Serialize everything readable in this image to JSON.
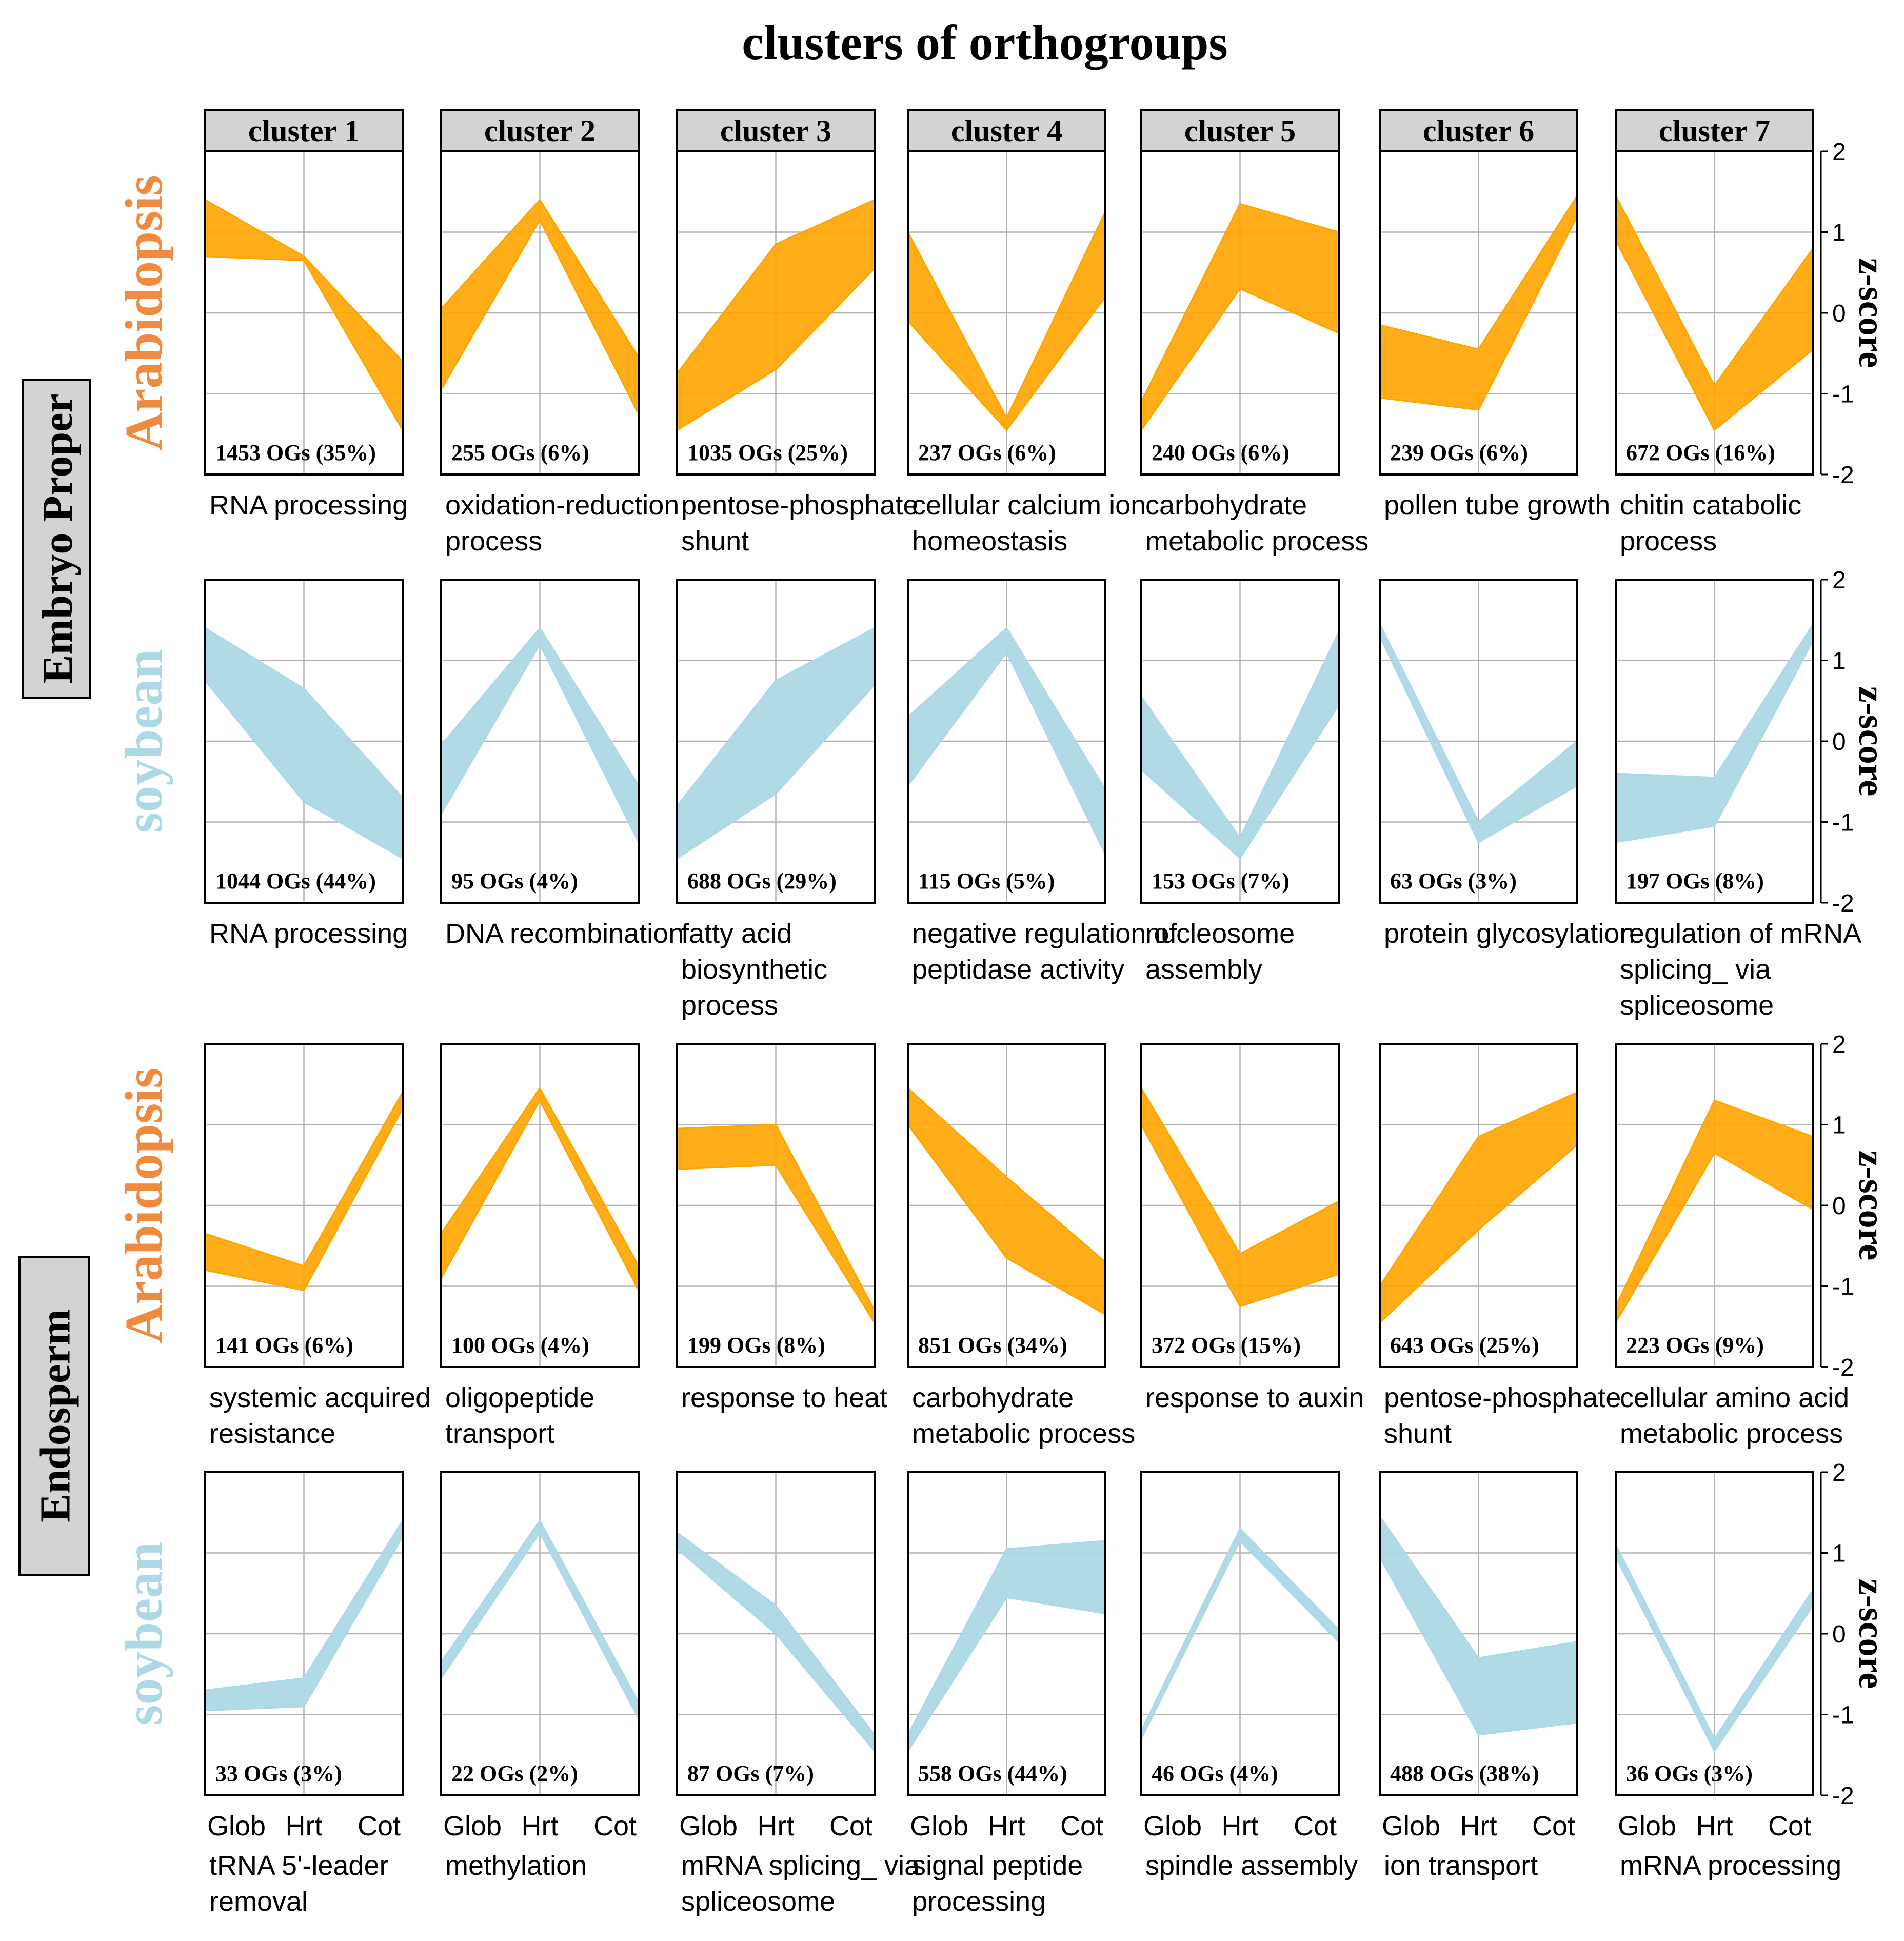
{
  "colors": {
    "arabidopsis": "#FFA500",
    "soybean": "#ADD8E6",
    "arabidopsis_label": "#F08A3E",
    "soybean_label": "#ADD8E6",
    "strip_fill": "#d3d3d3",
    "grid": "#b3b3b3"
  },
  "figure_title": "clusters of orthogroups",
  "tissues": [
    "Embryo Proper",
    "Endosperm"
  ],
  "cluster_labels": [
    "cluster 1",
    "cluster 2",
    "cluster 3",
    "cluster 4",
    "cluster 5",
    "cluster 6",
    "cluster 7"
  ],
  "x_ticks": [
    "Glob",
    "Hrt",
    "Cot"
  ],
  "y_axis_label": "z-score",
  "y_ticks": [
    "2",
    "1",
    "0",
    "-1",
    "-2"
  ],
  "rows": [
    {
      "tissue": "Embryo Proper",
      "species": "Arabidopsis",
      "panels": [
        {
          "count": "1453 OGs (35%)",
          "go": [
            "RNA processing"
          ]
        },
        {
          "count": "255 OGs (6%)",
          "go": [
            "oxidation-reduction",
            "process"
          ]
        },
        {
          "count": "1035 OGs (25%)",
          "go": [
            "pentose-phosphate",
            "shunt"
          ]
        },
        {
          "count": "237 OGs (6%)",
          "go": [
            "cellular calcium ion",
            "homeostasis"
          ]
        },
        {
          "count": "240 OGs (6%)",
          "go": [
            "carbohydrate",
            "metabolic process"
          ]
        },
        {
          "count": "239 OGs (6%)",
          "go": [
            "pollen tube growth"
          ]
        },
        {
          "count": "672 OGs (16%)",
          "go": [
            "chitin catabolic",
            "process"
          ]
        }
      ]
    },
    {
      "tissue": "Embryo Proper",
      "species": "soybean",
      "panels": [
        {
          "count": "1044 OGs (44%)",
          "go": [
            "RNA processing"
          ]
        },
        {
          "count": "95 OGs (4%)",
          "go": [
            "DNA recombination"
          ]
        },
        {
          "count": "688 OGs (29%)",
          "go": [
            "fatty acid",
            "biosynthetic",
            "process"
          ]
        },
        {
          "count": "115 OGs (5%)",
          "go": [
            "negative regulation of",
            "peptidase activity"
          ]
        },
        {
          "count": "153 OGs (7%)",
          "go": [
            "nucleosome",
            "assembly"
          ]
        },
        {
          "count": "63 OGs (3%)",
          "go": [
            "protein glycosylation"
          ]
        },
        {
          "count": "197 OGs (8%)",
          "go": [
            "regulation of mRNA",
            "splicing_ via",
            "spliceosome"
          ]
        }
      ]
    },
    {
      "tissue": "Endosperm",
      "species": "Arabidopsis",
      "panels": [
        {
          "count": "141 OGs (6%)",
          "go": [
            "systemic acquired",
            "resistance"
          ]
        },
        {
          "count": "100 OGs (4%)",
          "go": [
            "oligopeptide",
            "transport"
          ]
        },
        {
          "count": "199 OGs (8%)",
          "go": [
            "response to heat"
          ]
        },
        {
          "count": "851 OGs (34%)",
          "go": [
            "carbohydrate",
            "metabolic process"
          ]
        },
        {
          "count": "372 OGs (15%)",
          "go": [
            "response to auxin"
          ]
        },
        {
          "count": "643 OGs (25%)",
          "go": [
            "pentose-phosphate",
            "shunt"
          ]
        },
        {
          "count": "223 OGs (9%)",
          "go": [
            "cellular amino acid",
            "metabolic process"
          ]
        }
      ]
    },
    {
      "tissue": "Endosperm",
      "species": "soybean",
      "panels": [
        {
          "count": "33 OGs (3%)",
          "go": [
            "tRNA 5'-leader",
            "removal"
          ]
        },
        {
          "count": "22 OGs (2%)",
          "go": [
            "methylation"
          ]
        },
        {
          "count": "87 OGs (7%)",
          "go": [
            "mRNA splicing_ via",
            "spliceosome"
          ]
        },
        {
          "count": "558 OGs (44%)",
          "go": [
            "signal peptide",
            "processing"
          ]
        },
        {
          "count": "46 OGs (4%)",
          "go": [
            "spindle assembly"
          ]
        },
        {
          "count": "488 OGs (38%)",
          "go": [
            "ion transport"
          ]
        },
        {
          "count": "36 OGs (3%)",
          "go": [
            "mRNA processing"
          ]
        }
      ]
    }
  ],
  "chart_data": {
    "type": "line",
    "title": "clusters of orthogroups",
    "x": [
      "Glob",
      "Hrt",
      "Cot"
    ],
    "ylabel": "z-score",
    "ylim": [
      -2,
      2
    ],
    "grid": true,
    "note": "Each panel draws many per-orthogroup lines; band = [min,max] z-score envelope at Glob, Hrt, Cot.",
    "panels": [
      {
        "row": "Embryo Proper / Arabidopsis",
        "cluster": 1,
        "low": [
          0.7,
          0.65,
          -1.45
        ],
        "high": [
          1.4,
          0.7,
          -0.6
        ]
      },
      {
        "row": "Embryo Proper / Arabidopsis",
        "cluster": 2,
        "low": [
          -0.95,
          1.15,
          -1.25
        ],
        "high": [
          0.05,
          1.4,
          -0.55
        ]
      },
      {
        "row": "Embryo Proper / Arabidopsis",
        "cluster": 3,
        "low": [
          -1.45,
          -0.7,
          0.55
        ],
        "high": [
          -0.75,
          0.85,
          1.4
        ]
      },
      {
        "row": "Embryo Proper / Arabidopsis",
        "cluster": 4,
        "low": [
          -0.1,
          -1.45,
          0.2
        ],
        "high": [
          1.0,
          -1.3,
          1.25
        ]
      },
      {
        "row": "Embryo Proper / Arabidopsis",
        "cluster": 5,
        "low": [
          -1.45,
          0.3,
          -0.25
        ],
        "high": [
          -1.1,
          1.35,
          1.0
        ]
      },
      {
        "row": "Embryo Proper / Arabidopsis",
        "cluster": 6,
        "low": [
          -1.05,
          -1.2,
          1.2
        ],
        "high": [
          -0.15,
          -0.45,
          1.45
        ]
      },
      {
        "row": "Embryo Proper / Arabidopsis",
        "cluster": 7,
        "low": [
          0.9,
          -1.45,
          -0.45
        ],
        "high": [
          1.45,
          -0.9,
          0.8
        ]
      },
      {
        "row": "Embryo Proper / soybean",
        "cluster": 1,
        "low": [
          0.75,
          -0.75,
          -1.45
        ],
        "high": [
          1.4,
          0.65,
          -0.7
        ]
      },
      {
        "row": "Embryo Proper / soybean",
        "cluster": 2,
        "low": [
          -0.9,
          1.2,
          -1.25
        ],
        "high": [
          -0.05,
          1.4,
          -0.55
        ]
      },
      {
        "row": "Embryo Proper / soybean",
        "cluster": 3,
        "low": [
          -1.45,
          -0.65,
          0.7
        ],
        "high": [
          -0.8,
          0.75,
          1.4
        ]
      },
      {
        "row": "Embryo Proper / soybean",
        "cluster": 4,
        "low": [
          -0.55,
          1.1,
          -1.4
        ],
        "high": [
          0.3,
          1.4,
          -0.6
        ]
      },
      {
        "row": "Embryo Proper / soybean",
        "cluster": 5,
        "low": [
          -0.35,
          -1.45,
          0.45
        ],
        "high": [
          0.55,
          -1.2,
          1.35
        ]
      },
      {
        "row": "Embryo Proper / soybean",
        "cluster": 6,
        "low": [
          1.3,
          -1.25,
          -0.55
        ],
        "high": [
          1.45,
          -1.0,
          0.0
        ]
      },
      {
        "row": "Embryo Proper / soybean",
        "cluster": 7,
        "low": [
          -1.25,
          -1.05,
          1.25
        ],
        "high": [
          -0.4,
          -0.45,
          1.45
        ]
      },
      {
        "row": "Endosperm / Arabidopsis",
        "cluster": 1,
        "low": [
          -0.8,
          -1.05,
          1.2
        ],
        "high": [
          -0.35,
          -0.75,
          1.4
        ]
      },
      {
        "row": "Endosperm / Arabidopsis",
        "cluster": 2,
        "low": [
          -0.9,
          1.3,
          -1.05
        ],
        "high": [
          -0.35,
          1.45,
          -0.75
        ]
      },
      {
        "row": "Endosperm / Arabidopsis",
        "cluster": 3,
        "low": [
          0.45,
          0.5,
          -1.45
        ],
        "high": [
          0.95,
          1.0,
          -1.3
        ]
      },
      {
        "row": "Endosperm / Arabidopsis",
        "cluster": 4,
        "low": [
          1.0,
          -0.65,
          -1.35
        ],
        "high": [
          1.45,
          0.35,
          -0.7
        ]
      },
      {
        "row": "Endosperm / Arabidopsis",
        "cluster": 5,
        "low": [
          1.0,
          -1.25,
          -0.85
        ],
        "high": [
          1.45,
          -0.6,
          0.05
        ]
      },
      {
        "row": "Endosperm / Arabidopsis",
        "cluster": 6,
        "low": [
          -1.45,
          -0.3,
          0.75
        ],
        "high": [
          -1.0,
          0.85,
          1.4
        ]
      },
      {
        "row": "Endosperm / Arabidopsis",
        "cluster": 7,
        "low": [
          -1.45,
          0.65,
          -0.05
        ],
        "high": [
          -1.25,
          1.3,
          0.85
        ]
      },
      {
        "row": "Endosperm / soybean",
        "cluster": 1,
        "low": [
          -0.95,
          -0.9,
          1.2
        ],
        "high": [
          -0.7,
          -0.55,
          1.4
        ]
      },
      {
        "row": "Endosperm / soybean",
        "cluster": 2,
        "low": [
          -0.55,
          1.25,
          -1.05
        ],
        "high": [
          -0.35,
          1.4,
          -0.85
        ]
      },
      {
        "row": "Endosperm / soybean",
        "cluster": 3,
        "low": [
          1.05,
          0.0,
          -1.45
        ],
        "high": [
          1.25,
          0.35,
          -1.25
        ]
      },
      {
        "row": "Endosperm / soybean",
        "cluster": 4,
        "low": [
          -1.45,
          0.45,
          0.25
        ],
        "high": [
          -1.25,
          1.05,
          1.15
        ]
      },
      {
        "row": "Endosperm / soybean",
        "cluster": 5,
        "low": [
          -1.3,
          1.15,
          -0.1
        ],
        "high": [
          -1.2,
          1.3,
          0.05
        ]
      },
      {
        "row": "Endosperm / soybean",
        "cluster": 6,
        "low": [
          0.95,
          -1.25,
          -1.1
        ],
        "high": [
          1.45,
          -0.3,
          -0.1
        ]
      },
      {
        "row": "Endosperm / soybean",
        "cluster": 7,
        "low": [
          0.95,
          -1.45,
          0.35
        ],
        "high": [
          1.1,
          -1.3,
          0.55
        ]
      }
    ]
  }
}
